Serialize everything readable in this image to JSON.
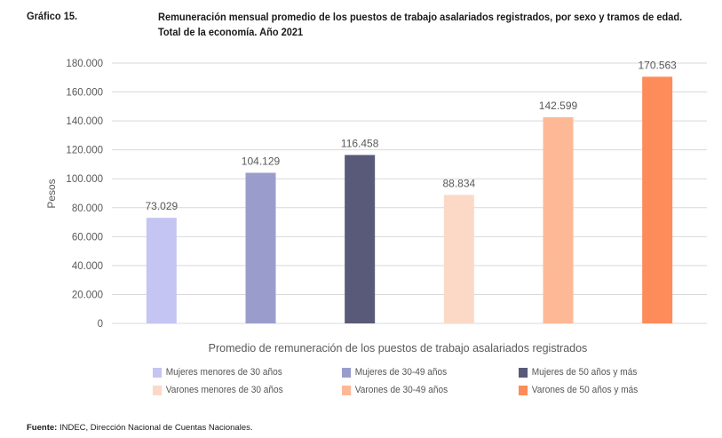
{
  "figure": {
    "label": "Gráfico 15.",
    "title": "Remuneración mensual promedio de los puestos de trabajo asalariados registrados, por sexo y tramos de edad. Total de la economía. Año 2021"
  },
  "source": {
    "label": "Fuente:",
    "text": "INDEC, Dirección Nacional de Cuentas Nacionales."
  },
  "chart_data": {
    "type": "bar",
    "ylabel": "Pesos",
    "xlabel": "Promedio de remuneración de los puestos de trabajo asalariados registrados",
    "ylim": [
      0,
      180000
    ],
    "yticks": [
      0,
      20000,
      40000,
      60000,
      80000,
      100000,
      120000,
      140000,
      160000,
      180000
    ],
    "ytick_labels": [
      "0",
      "20.000",
      "40.000",
      "60.000",
      "80.000",
      "100.000",
      "120.000",
      "140.000",
      "160.000",
      "180.000"
    ],
    "grid": true,
    "legend_position": "bottom",
    "series": [
      {
        "name": "Mujeres menores de 30 años",
        "value": 73029,
        "label": "73.029",
        "color": "#c5c5f3"
      },
      {
        "name": "Mujeres de 30-49 años",
        "value": 104129,
        "label": "104.129",
        "color": "#9a9dcc"
      },
      {
        "name": "Mujeres de 50 años y más",
        "value": 116458,
        "label": "116.458",
        "color": "#595a7a"
      },
      {
        "name": "Varones menores de 30 años",
        "value": 88834,
        "label": "88.834",
        "color": "#fcd9c6"
      },
      {
        "name": "Varones de 30-49 años",
        "value": 142599,
        "label": "142.599",
        "color": "#fdb996"
      },
      {
        "name": "Varones de 50 años y más",
        "value": 170563,
        "label": "170.563",
        "color": "#fd8c5a"
      }
    ]
  }
}
